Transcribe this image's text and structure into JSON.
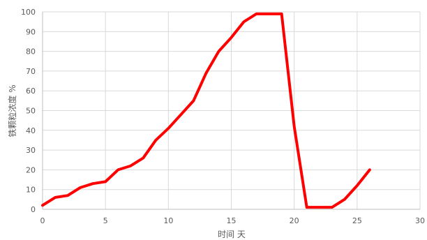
{
  "chart_data": {
    "type": "line",
    "title": "",
    "xlabel": "时间 天",
    "ylabel": "铁颗粒浓度 %",
    "xlim": [
      0,
      30
    ],
    "ylim": [
      0,
      100
    ],
    "x_ticks": [
      0,
      5,
      10,
      15,
      20,
      25,
      30
    ],
    "y_ticks": [
      0,
      10,
      20,
      30,
      40,
      50,
      60,
      70,
      80,
      90,
      100
    ],
    "grid": "both",
    "legend": "none",
    "series": [
      {
        "color": "#ff0000",
        "x": [
          0,
          1,
          2,
          3,
          4,
          5,
          6,
          7,
          8,
          9,
          10,
          11,
          12,
          13,
          14,
          15,
          16,
          17,
          18,
          19,
          20,
          21,
          22,
          23,
          24,
          25,
          26
        ],
        "y": [
          2,
          6,
          7,
          11,
          13,
          14,
          20,
          22,
          26,
          35,
          41,
          48,
          55,
          69,
          80,
          87,
          95,
          99,
          99,
          99,
          42,
          1,
          1,
          1,
          5,
          12,
          20
        ]
      }
    ]
  }
}
